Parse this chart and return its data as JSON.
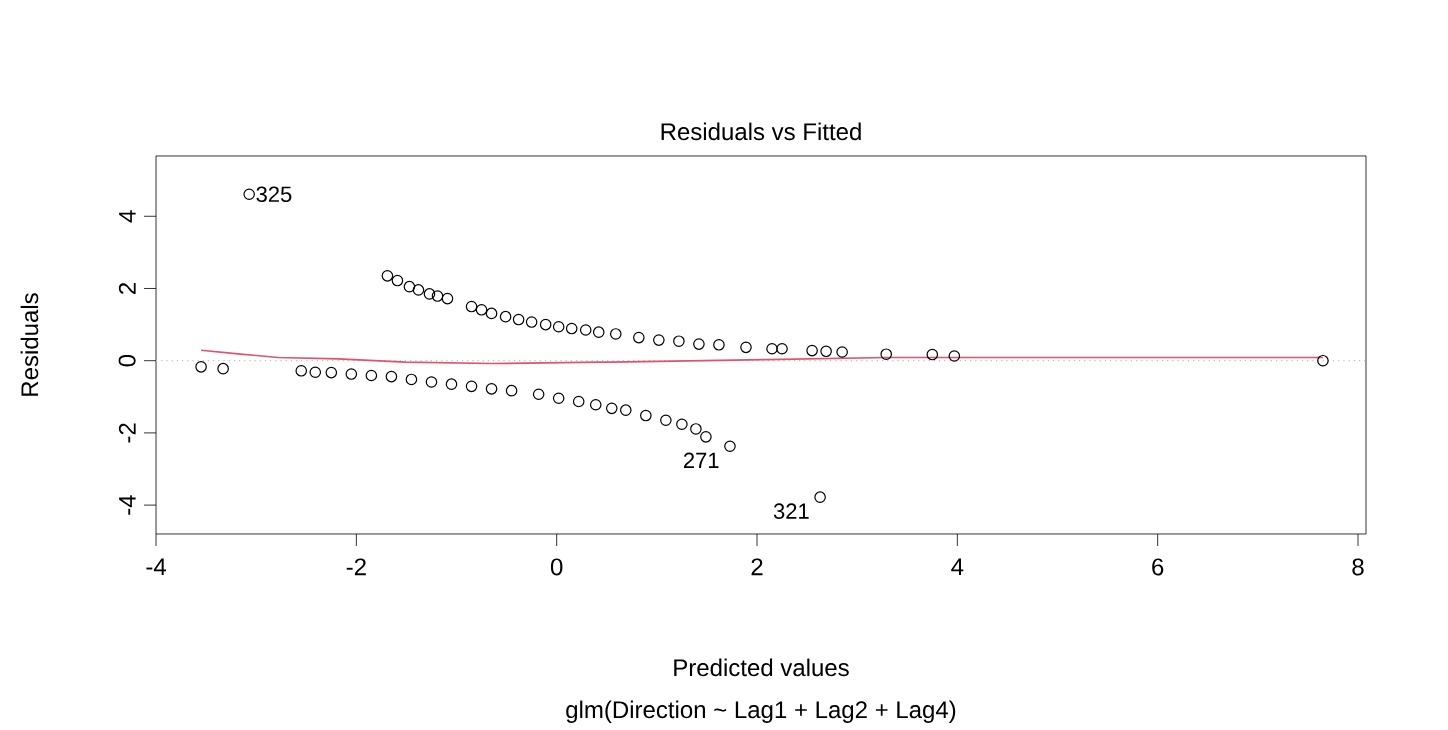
{
  "chart_data": {
    "type": "scatter",
    "title": "Residuals vs Fitted",
    "subtitle": "glm(Direction ~ Lag1 + Lag2 + Lag4)",
    "xlabel": "Predicted values",
    "ylabel": "Residuals",
    "xlim": [
      -4,
      8.08
    ],
    "ylim": [
      -4.8,
      5.67
    ],
    "xticks": [
      -4,
      -2,
      0,
      2,
      4,
      6,
      8
    ],
    "yticks": [
      -4,
      -2,
      0,
      2,
      4
    ],
    "series": [
      {
        "marker": "circle",
        "color": "#000000",
        "x": [
          -3.55,
          -3.33,
          -3.07,
          -1.69,
          -1.59,
          -1.47,
          -1.38,
          -1.27,
          -1.19,
          -1.09,
          -0.85,
          -0.75,
          -0.65,
          -0.51,
          -0.38,
          -0.25,
          -0.11,
          0.02,
          0.15,
          0.29,
          0.42,
          0.59,
          0.82,
          1.02,
          1.22,
          1.42,
          1.62,
          1.89,
          2.15,
          2.25,
          2.55,
          2.69,
          2.85,
          3.29,
          3.75,
          3.97,
          7.65,
          -2.55,
          -2.41,
          -2.25,
          -2.05,
          -1.85,
          -1.65,
          -1.45,
          -1.25,
          -1.05,
          -0.85,
          -0.65,
          -0.45,
          -0.18,
          0.02,
          0.22,
          0.39,
          0.55,
          0.69,
          0.89,
          1.09,
          1.25,
          1.39,
          1.49,
          1.73,
          2.63
        ],
        "values": [
          -0.17,
          -0.22,
          4.61,
          2.35,
          2.22,
          2.05,
          1.96,
          1.85,
          1.79,
          1.72,
          1.5,
          1.41,
          1.31,
          1.22,
          1.14,
          1.07,
          1.0,
          0.94,
          0.89,
          0.85,
          0.79,
          0.74,
          0.64,
          0.57,
          0.54,
          0.46,
          0.44,
          0.37,
          0.33,
          0.33,
          0.28,
          0.26,
          0.24,
          0.18,
          0.17,
          0.13,
          0.0,
          -0.28,
          -0.32,
          -0.33,
          -0.37,
          -0.41,
          -0.44,
          -0.52,
          -0.59,
          -0.65,
          -0.71,
          -0.78,
          -0.83,
          -0.93,
          -1.04,
          -1.13,
          -1.22,
          -1.32,
          -1.37,
          -1.52,
          -1.65,
          -1.76,
          -1.89,
          -2.11,
          -2.37,
          -3.78
        ]
      },
      {
        "type": "line",
        "color": "#df536b",
        "x": [
          -3.55,
          -3.18,
          -2.78,
          -2.18,
          -1.51,
          -0.65,
          0.42,
          0.55,
          2.09,
          3.29,
          7.65
        ],
        "values": [
          0.29,
          0.19,
          0.09,
          0.05,
          -0.04,
          -0.08,
          -0.04,
          -0.04,
          0.03,
          0.09,
          0.09
        ]
      }
    ],
    "ref_lines": [
      {
        "axis": "y",
        "value": 0,
        "color": "#bebebe",
        "line_style": "dotted"
      }
    ],
    "annotations": [
      {
        "text": "325",
        "x": -3.07,
        "y": 4.61
      },
      {
        "text": "271",
        "x": 1.73,
        "y": -2.37
      },
      {
        "text": "321",
        "x": 2.63,
        "y": -3.78
      }
    ]
  }
}
